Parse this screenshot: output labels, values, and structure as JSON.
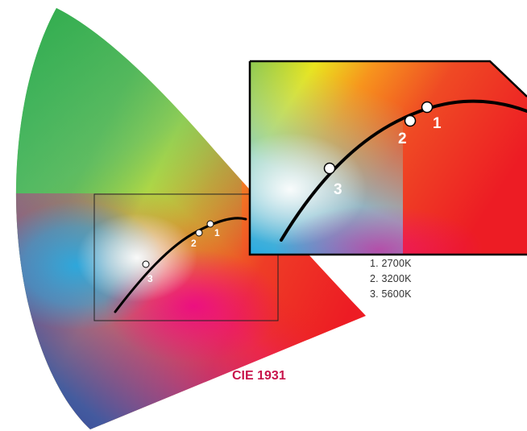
{
  "diagram": {
    "name": "CIE 1931",
    "accent_color": "#c8144b",
    "curve_color": "#000000",
    "point_fill": "#ffffff",
    "points": [
      {
        "number": "1",
        "label": "1"
      },
      {
        "number": "2",
        "label": "2"
      },
      {
        "number": "3",
        "label": "3"
      }
    ]
  },
  "legend": {
    "items": [
      "1. 2700K",
      "2. 3200K",
      "3. 5600K"
    ]
  }
}
